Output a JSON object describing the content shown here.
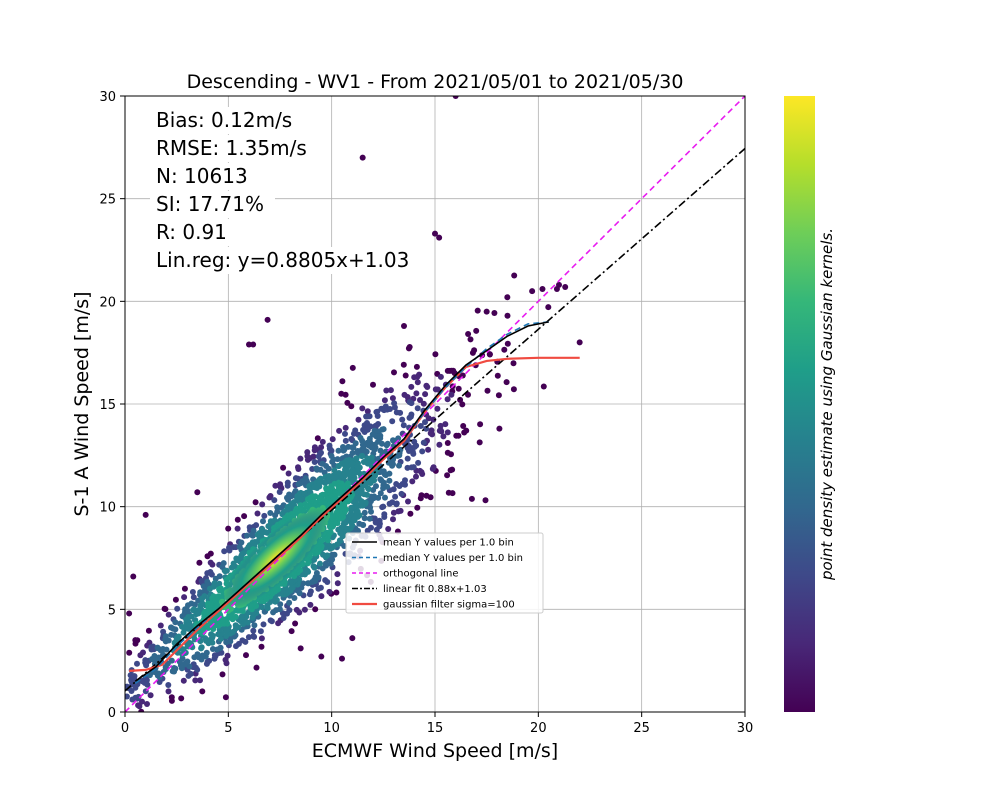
{
  "chart_data": {
    "type": "scatter",
    "title": "Descending - WV1 - From 2021/05/01 to 2021/05/30",
    "xlabel": "ECMWF Wind Speed [m/s]",
    "ylabel": "S-1 A Wind Speed [m/s]",
    "xlim": [
      0,
      30
    ],
    "ylim": [
      0,
      30
    ],
    "xticks": [
      0,
      5,
      10,
      15,
      20,
      25,
      30
    ],
    "yticks": [
      0,
      5,
      10,
      15,
      20,
      25,
      30
    ],
    "grid": true,
    "legend_placement": "center-right",
    "stats": [
      "Bias: 0.12m/s",
      "RMSE: 1.35m/s",
      "N: 10613",
      "SI: 17.71%",
      "R: 0.91",
      "Lin.reg: y=0.8805x+1.03"
    ],
    "colorbar": {
      "label": "point density estimate using Gaussian kernels.",
      "colormap": "viridis",
      "colors": [
        "#440154",
        "#482878",
        "#3e4989",
        "#31688e",
        "#26828e",
        "#1f9e89",
        "#35b779",
        "#6ece58",
        "#b5de2b",
        "#fde725"
      ]
    },
    "series": [
      {
        "name": "mean Y values per 1.0 bin",
        "style": "solid",
        "color": "#000000",
        "x": [
          0.5,
          1.5,
          2.5,
          3.5,
          4.5,
          5.5,
          6.5,
          7.5,
          8.5,
          9.5,
          10.5,
          11.5,
          12.5,
          13.5,
          14.5,
          15.5,
          16.5,
          17.5,
          18.5,
          19.5,
          20.5
        ],
        "y": [
          1.5,
          2.2,
          3.3,
          4.2,
          5.0,
          5.9,
          6.8,
          7.7,
          8.6,
          9.6,
          10.5,
          11.4,
          12.4,
          13.3,
          14.7,
          15.9,
          16.9,
          17.6,
          18.3,
          18.8,
          19.0
        ]
      },
      {
        "name": "median Y values per 1.0 bin",
        "style": "dashed",
        "color": "#1f77b4",
        "x": [
          0.5,
          1.5,
          2.5,
          3.5,
          4.5,
          5.5,
          6.5,
          7.5,
          8.5,
          9.5,
          10.5,
          11.5,
          12.5,
          13.5,
          14.5,
          15.5,
          16.5,
          17.5,
          18.5,
          19.5,
          20.5
        ],
        "y": [
          1.4,
          2.1,
          3.2,
          4.1,
          5.0,
          5.9,
          6.8,
          7.7,
          8.6,
          9.6,
          10.5,
          11.4,
          12.4,
          13.3,
          14.6,
          15.8,
          16.8,
          17.7,
          18.4,
          18.9,
          19.0
        ]
      },
      {
        "name": "orthogonal line",
        "style": "dashed",
        "color": "#e81cf0",
        "x": [
          0,
          30
        ],
        "y": [
          0,
          30
        ]
      },
      {
        "name": "linear fit 0.88x+1.03",
        "style": "dashdot",
        "color": "#000000",
        "x": [
          0,
          30
        ],
        "y": [
          1.03,
          27.445
        ]
      },
      {
        "name": "gaussian filter sigma=100",
        "style": "solid",
        "color": "#f04b41",
        "x": [
          0.2,
          1.0,
          1.8,
          2.5,
          3.5,
          4.5,
          5.5,
          6.5,
          7.5,
          8.5,
          9.5,
          10.5,
          11.5,
          12.5,
          13.5,
          14.5,
          15.5,
          16.5,
          17.5,
          18.5,
          20.0,
          22.0
        ],
        "y": [
          2.0,
          2.05,
          2.3,
          3.0,
          4.0,
          4.9,
          5.8,
          6.7,
          7.6,
          8.5,
          9.5,
          10.4,
          11.3,
          12.3,
          13.2,
          14.6,
          15.8,
          16.8,
          17.1,
          17.2,
          17.25,
          17.25
        ]
      }
    ],
    "outliers": {
      "x": [
        16.0,
        11.5,
        15.0,
        15.2,
        6.9,
        19.7,
        20.2,
        21.0,
        22.0,
        18.5,
        17.5,
        6.2,
        6.0,
        3.5,
        2.9,
        1.0,
        0.4,
        0.2,
        0.5,
        9.5,
        8.5,
        10.5,
        11.0,
        21.3,
        20.9,
        13.5
      ],
      "y": [
        30.0,
        27.0,
        23.3,
        23.1,
        19.1,
        20.5,
        20.6,
        20.8,
        18.0,
        20.2,
        19.5,
        17.9,
        17.9,
        10.7,
        6.0,
        9.6,
        6.6,
        4.8,
        3.5,
        2.7,
        3.1,
        2.6,
        3.6,
        20.7,
        20.6,
        18.8
      ]
    }
  }
}
